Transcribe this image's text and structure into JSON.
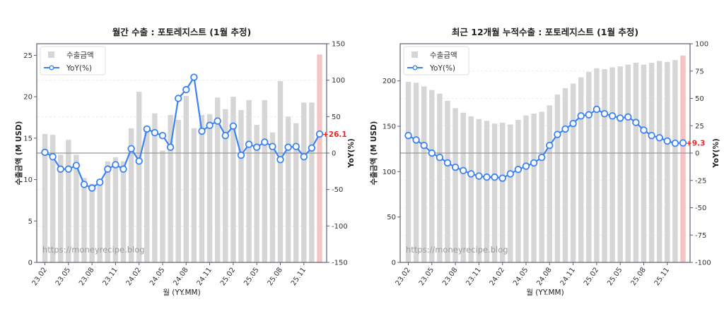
{
  "chart_data": [
    {
      "type": "bar+line",
      "title": "월간 수출 : 포토레지스트 (1월 추정)",
      "xlabel": "월 (YY.MM)",
      "ylabel": "수출금액 (M USD)",
      "y2label": "YoY(%)",
      "ylim": [
        0,
        26.4
      ],
      "y2lim": [
        -150,
        150
      ],
      "yticks": [
        0,
        5,
        10,
        15,
        20,
        25
      ],
      "y2ticks": [
        -150,
        -100,
        -50,
        0,
        50,
        100,
        150
      ],
      "xtick_labels": [
        "23.02",
        "23.05",
        "23.08",
        "23.11",
        "24.02",
        "24.05",
        "24.08",
        "24.11",
        "25.02",
        "25.05",
        "25.08",
        "25.11"
      ],
      "legend": [
        "수출금액",
        "YoY(%)"
      ],
      "watermark": "https://moneyrecipe.blog",
      "last_label": "+26.1",
      "categories": [
        "23.02",
        "23.03",
        "23.04",
        "23.05",
        "23.06",
        "23.07",
        "23.08",
        "23.09",
        "23.10",
        "23.11",
        "23.12",
        "24.01",
        "24.02",
        "24.03",
        "24.04",
        "24.05",
        "24.06",
        "24.07",
        "24.08",
        "24.09",
        "24.10",
        "24.11",
        "24.12",
        "25.01",
        "25.02",
        "25.03",
        "25.04",
        "25.05",
        "25.06",
        "25.07",
        "25.08",
        "25.09",
        "25.10",
        "25.11",
        "25.12",
        "26.01"
      ],
      "series": [
        {
          "name": "수출금액",
          "type": "bar",
          "values": [
            15.5,
            15.4,
            13.0,
            14.8,
            13.0,
            10.2,
            9.5,
            10.0,
            12.2,
            12.7,
            12.2,
            16.2,
            20.6,
            16.3,
            18.0,
            13.5,
            17.8,
            17.2,
            20.1,
            16.2,
            17.8,
            17.9,
            19.9,
            18.5,
            20.0,
            18.4,
            19.6,
            16.6,
            19.6,
            15.7,
            21.9,
            17.6,
            16.8,
            19.3,
            19.3,
            25.1
          ],
          "last_estimated": true
        },
        {
          "name": "YoY(%)",
          "type": "line",
          "values": [
            1,
            -5,
            -22,
            -22,
            -17,
            -43,
            -48,
            -40,
            -22,
            -16,
            -22,
            6,
            -11,
            33,
            28,
            24,
            8,
            75,
            87,
            104,
            30,
            38,
            44,
            24,
            37,
            -3,
            12,
            8,
            15,
            9,
            -9,
            8,
            9,
            -5,
            7,
            26.1
          ]
        }
      ]
    },
    {
      "type": "bar+line",
      "title": "최근 12개월 누적수출 : 포토레지스트 (1월 추정)",
      "xlabel": "월 (YY.MM)",
      "ylabel": "수출금액 (M USD)",
      "y2label": "YoY(%)",
      "ylim": [
        0,
        241
      ],
      "y2lim": [
        -100,
        100
      ],
      "yticks": [
        0,
        50,
        100,
        150,
        200
      ],
      "y2ticks": [
        -100,
        -75,
        -50,
        -25,
        0,
        25,
        50,
        75,
        100
      ],
      "xtick_labels": [
        "23.02",
        "23.05",
        "23.08",
        "23.11",
        "24.02",
        "24.05",
        "24.08",
        "24.11",
        "25.02",
        "25.05",
        "25.08",
        "25.11"
      ],
      "legend": [
        "수출금액",
        "YoY(%)"
      ],
      "watermark": "https://moneyrecipe.blog",
      "last_label": "+9.3",
      "categories": [
        "23.02",
        "23.03",
        "23.04",
        "23.05",
        "23.06",
        "23.07",
        "23.08",
        "23.09",
        "23.10",
        "23.11",
        "23.12",
        "24.01",
        "24.02",
        "24.03",
        "24.04",
        "24.05",
        "24.06",
        "24.07",
        "24.08",
        "24.09",
        "24.10",
        "24.11",
        "24.12",
        "25.01",
        "25.02",
        "25.03",
        "25.04",
        "25.05",
        "25.06",
        "25.07",
        "25.08",
        "25.09",
        "25.10",
        "25.11",
        "25.12",
        "26.01"
      ],
      "series": [
        {
          "name": "수출금액",
          "type": "bar",
          "values": [
            199,
            198,
            194,
            190,
            186,
            178,
            170,
            165,
            161,
            158,
            156,
            153,
            154,
            152,
            157,
            162,
            164,
            166,
            173,
            185,
            192,
            197,
            204,
            210,
            214,
            213,
            215,
            216,
            218,
            220,
            218,
            220,
            222,
            221,
            223,
            228
          ],
          "last_estimated": true
        },
        {
          "name": "YoY(%)",
          "type": "line",
          "values": [
            16,
            12,
            7,
            0,
            -4,
            -9,
            -13,
            -16,
            -19,
            -21,
            -22,
            -22,
            -23,
            -19,
            -15,
            -12,
            -9,
            -4,
            7,
            17,
            22,
            27,
            34,
            35,
            40,
            36,
            34,
            32,
            33,
            28,
            21,
            16,
            14,
            11,
            9,
            9.3
          ]
        }
      ]
    }
  ],
  "colors": {
    "bar": "#d6d6d6",
    "bar_estimated": "#f6c4c4",
    "line": "#3b82f6",
    "last_label": "#ff2020",
    "zero_line": "#999999",
    "grid": "#e8e8e8",
    "axes": "#5a6070"
  }
}
